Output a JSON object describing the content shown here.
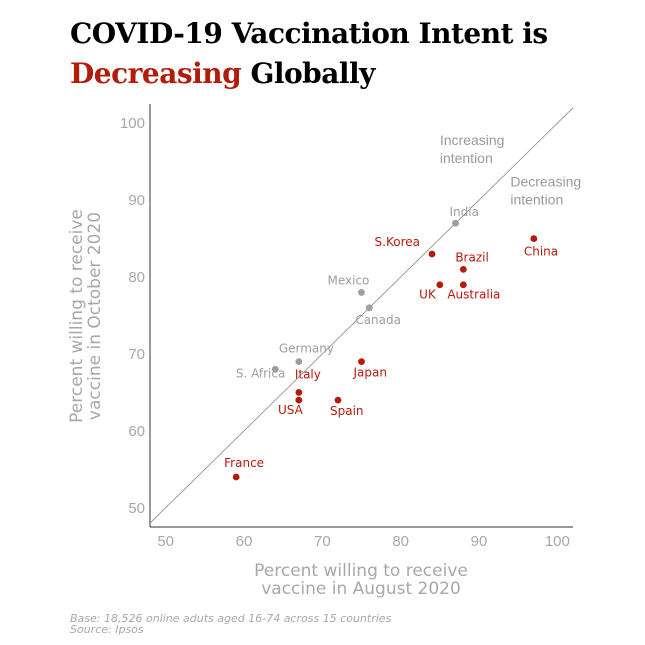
{
  "title": {
    "line1": "COVID-19 Vaccination Intent is",
    "line2_highlight": "Decreasing",
    "line2_rest": " Globally"
  },
  "footer": {
    "base": "Base: 18,526 online aduts aged 16-74 across 15 countries",
    "source": "Source: Ipsos"
  },
  "colors": {
    "decreasing": "#b31b0b",
    "other": "#9e9e9e",
    "axis_text": "#a8a8a8"
  },
  "chart_data": {
    "type": "scatter",
    "xlabel": [
      "Percent willing to receive",
      "vaccine in August 2020"
    ],
    "ylabel": [
      "Percent willing to receive",
      "vaccine in October 2020"
    ],
    "xlim": [
      48,
      102
    ],
    "ylim": [
      47.5,
      102.5
    ],
    "xticks": [
      50,
      60,
      70,
      80,
      90,
      100
    ],
    "yticks": [
      50,
      60,
      70,
      80,
      90,
      100
    ],
    "grid": false,
    "reference_line": "y = x",
    "annotations": [
      {
        "lines": [
          "Increasing",
          "intention"
        ],
        "x": 85,
        "y": 97.2
      },
      {
        "lines": [
          "Decreasing",
          "intention"
        ],
        "x": 94,
        "y": 91.8
      }
    ],
    "points": [
      {
        "label": "China",
        "x": 97,
        "y": 85,
        "group": "decreasing"
      },
      {
        "label": "S.Korea",
        "x": 84,
        "y": 83,
        "group": "decreasing"
      },
      {
        "label": "Brazil",
        "x": 88,
        "y": 81,
        "group": "decreasing"
      },
      {
        "label": "UK",
        "x": 85,
        "y": 79,
        "group": "decreasing"
      },
      {
        "label": "Australia",
        "x": 88,
        "y": 79,
        "group": "decreasing"
      },
      {
        "label": "Japan",
        "x": 75,
        "y": 69,
        "group": "decreasing"
      },
      {
        "label": "Italy",
        "x": 67,
        "y": 65,
        "group": "decreasing"
      },
      {
        "label": "USA",
        "x": 67,
        "y": 64,
        "group": "decreasing"
      },
      {
        "label": "Spain",
        "x": 72,
        "y": 64,
        "group": "decreasing"
      },
      {
        "label": "France",
        "x": 59,
        "y": 54,
        "group": "decreasing"
      },
      {
        "label": "India",
        "x": 87,
        "y": 87,
        "group": "other"
      },
      {
        "label": "Mexico",
        "x": 75,
        "y": 78,
        "group": "other"
      },
      {
        "label": "Canada",
        "x": 76,
        "y": 76,
        "group": "other"
      },
      {
        "label": "Germany",
        "x": 67,
        "y": 69,
        "group": "other"
      },
      {
        "label": "S. Africa",
        "x": 64,
        "y": 68,
        "group": "other"
      }
    ]
  }
}
